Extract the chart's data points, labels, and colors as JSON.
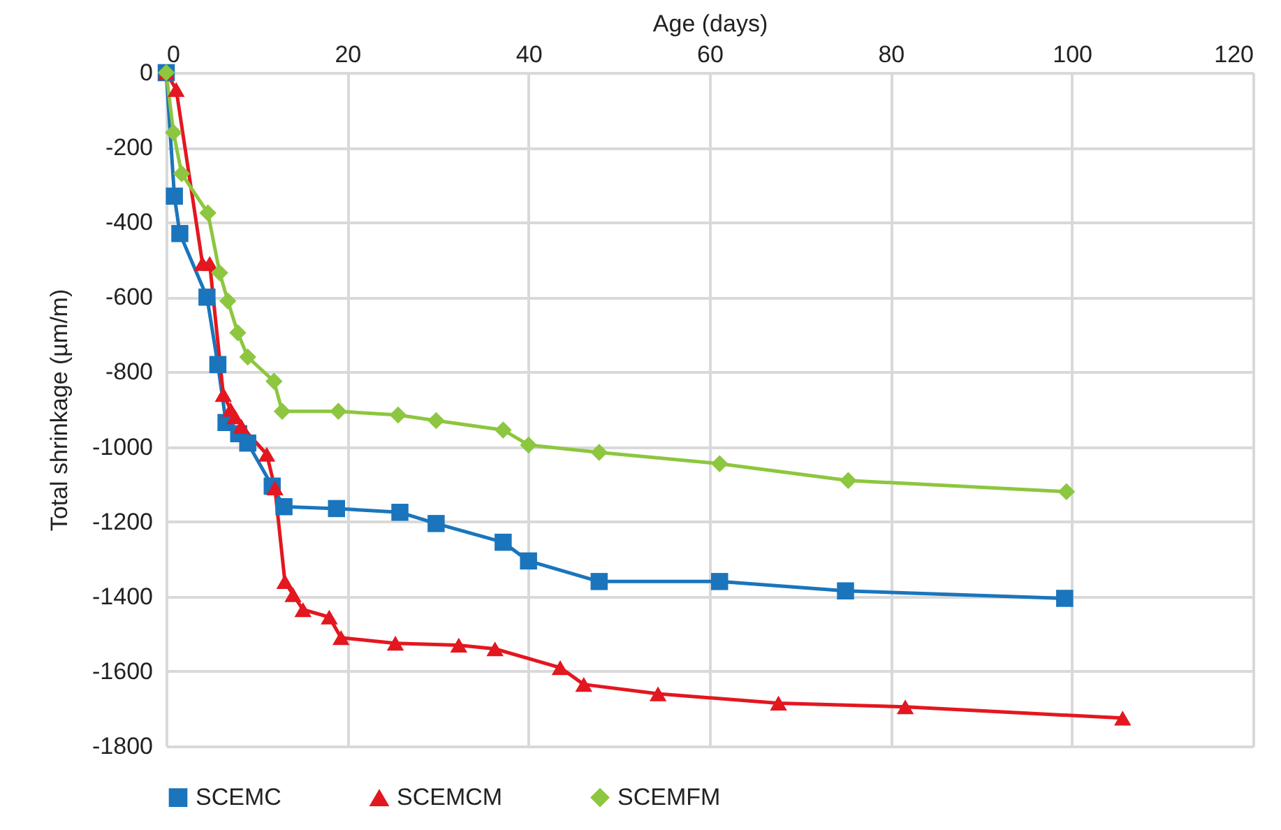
{
  "chart_data": {
    "type": "line",
    "xlabel": "Age (days)",
    "ylabel": "Total shrinkage (µm/m)",
    "xlim": [
      0,
      120
    ],
    "xticks": [
      0,
      20,
      40,
      60,
      80,
      100,
      120
    ],
    "ylim": [
      -1800,
      0
    ],
    "yticks": [
      -1800,
      -1600,
      -1400,
      -1200,
      -1000,
      -800,
      -600,
      -400,
      -200,
      0
    ],
    "grid": true,
    "legend": "bottom",
    "line_style": "solid",
    "series": [
      {
        "name": "SCEMC",
        "color": "#1a75bc",
        "marker": "square",
        "x": [
          0,
          0.9,
          1.5,
          4.5,
          5.7,
          6.6,
          8,
          9,
          11.7,
          13,
          18.8,
          25.8,
          29.8,
          37.2,
          40,
          47.8,
          61.1,
          75,
          99.2
        ],
        "values": [
          0,
          -330,
          -430,
          -600,
          -780,
          -935,
          -965,
          -990,
          -1105,
          -1160,
          -1165,
          -1175,
          -1205,
          -1255,
          -1305,
          -1360,
          -1360,
          -1385,
          -1405
        ]
      },
      {
        "name": "SCEMCM",
        "color": "#e3171f",
        "marker": "triangle",
        "x": [
          0,
          1.1,
          4,
          4.8,
          6.3,
          7.1,
          7.6,
          8.3,
          11.1,
          12,
          13.1,
          14,
          15.1,
          18,
          19.3,
          25.3,
          32.3,
          36.3,
          43.5,
          46.1,
          54.3,
          67.6,
          81.6,
          105.6
        ],
        "values": [
          0,
          -45,
          -510,
          -510,
          -860,
          -900,
          -920,
          -945,
          -1020,
          -1110,
          -1360,
          -1395,
          -1435,
          -1455,
          -1510,
          -1525,
          -1530,
          -1540,
          -1590,
          -1635,
          -1660,
          -1685,
          -1695,
          -1725
        ]
      },
      {
        "name": "SCEMFM",
        "color": "#8dc63f",
        "marker": "diamond",
        "x": [
          0,
          0.8,
          1.7,
          4.6,
          5.9,
          6.8,
          7.9,
          9,
          11.9,
          12.8,
          19,
          25.6,
          29.8,
          37.2,
          40,
          47.8,
          61.1,
          75.3,
          99.4
        ],
        "values": [
          0,
          -160,
          -270,
          -375,
          -535,
          -610,
          -695,
          -760,
          -825,
          -905,
          -905,
          -915,
          -930,
          -955,
          -995,
          -1015,
          -1045,
          -1090,
          -1120
        ]
      }
    ]
  }
}
